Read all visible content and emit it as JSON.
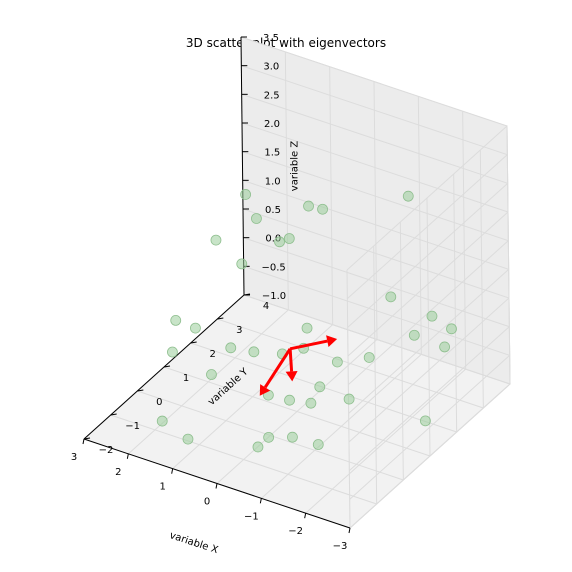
{
  "chart_data": {
    "type": "scatter",
    "title": "3D scatter plot with eigenvectors",
    "xlabel": "variable X",
    "ylabel": "variable Y",
    "zlabel": "variable Z",
    "xlim": [
      -3,
      3
    ],
    "ylim": [
      -2,
      4
    ],
    "zlim": [
      -1,
      3.5
    ],
    "x_ticks": [
      "−3",
      "−2",
      "−1",
      "0",
      "1",
      "2",
      "3"
    ],
    "y_ticks": [
      "−2",
      "−1",
      "0",
      "1",
      "2",
      "3",
      "4"
    ],
    "z_ticks": [
      "−1.0",
      "−0.5",
      "0.0",
      "0.5",
      "1.0",
      "1.5",
      "2.0",
      "2.5",
      "3.0",
      "3.5"
    ],
    "grid": true,
    "point_color": "#9acd9a",
    "arrow_color": "#ff0000",
    "points": [
      [
        -1.6,
        2.6,
        2.5
      ],
      [
        0.1,
        2.2,
        2.0
      ],
      [
        0.6,
        2.5,
        1.8
      ],
      [
        1.9,
        2.3,
        1.75
      ],
      [
        1.6,
        2.2,
        1.45
      ],
      [
        0.8,
        2.1,
        1.35
      ],
      [
        0.9,
        1.9,
        1.35
      ],
      [
        -1.3,
        2.4,
        0.75
      ],
      [
        2.4,
        2.0,
        0.95
      ],
      [
        1.7,
        1.8,
        0.8
      ],
      [
        -2.3,
        3.0,
        0.2
      ],
      [
        -1.8,
        3.1,
        0.25
      ],
      [
        -1.7,
        2.6,
        0.1
      ],
      [
        -2.2,
        2.9,
        -0.1
      ],
      [
        -1.1,
        1.9,
        -0.15
      ],
      [
        0.2,
        1.6,
        -0.2
      ],
      [
        0.3,
        1.9,
        0.0
      ],
      [
        0.5,
        1.3,
        -0.25
      ],
      [
        -0.5,
        1.7,
        -0.3
      ],
      [
        0.9,
        0.9,
        -0.15
      ],
      [
        1.3,
        0.7,
        -0.1
      ],
      [
        2.4,
        1.2,
        -0.25
      ],
      [
        2.6,
        0.8,
        0.0
      ],
      [
        2.5,
        0.5,
        -0.4
      ],
      [
        -0.4,
        1.2,
        -0.55
      ],
      [
        -1.0,
        1.3,
        -0.65
      ],
      [
        -0.5,
        0.7,
        -0.6
      ],
      [
        -0.2,
        0.4,
        -0.5
      ],
      [
        0.4,
        0.6,
        -0.65
      ],
      [
        1.5,
        0.3,
        -0.45
      ],
      [
        -2.6,
        1.5,
        -0.7
      ],
      [
        -0.9,
        0.3,
        -1.05
      ],
      [
        -0.5,
        0.0,
        -0.9
      ],
      [
        0.1,
        0.1,
        -1.1
      ],
      [
        0.1,
        -0.3,
        -1.1
      ],
      [
        1.5,
        -0.6,
        -1.2
      ],
      [
        2.2,
        -0.4,
        -1.15
      ]
    ],
    "mean": [
      0.2,
      1.1,
      0.0
    ],
    "eigenvectors": [
      [
        -0.7,
        0.6,
        0.1
      ],
      [
        -0.1,
        -0.1,
        -0.5
      ],
      [
        0.7,
        0.0,
        -1.0
      ]
    ]
  }
}
